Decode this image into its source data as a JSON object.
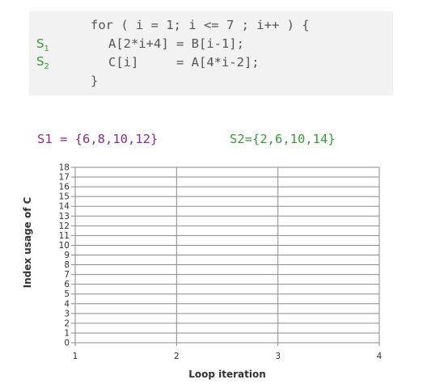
{
  "code": {
    "line1": "for ( i = 1; i <= 7 ; i++ ) {",
    "line2": "A[2*i+4] = B[i-1];",
    "line3": "C[i]     = A[4*i-2];",
    "line4": "}",
    "s1_label": "S",
    "s1_sub": "1",
    "s2_label": "S",
    "s2_sub": "2"
  },
  "sets": {
    "s1": "S1 = {6,8,10,12}",
    "s2": "S2={2,6,10,14}"
  },
  "chart_data": {
    "type": "scatter",
    "xlabel": "Loop iteration",
    "ylabel": "Index usage of C",
    "xlim": [
      1,
      4
    ],
    "ylim": [
      0,
      18
    ],
    "x_ticks": [
      "1",
      "2",
      "3",
      "4"
    ],
    "y_ticks": [
      "0",
      "1",
      "2",
      "3",
      "4",
      "5",
      "6",
      "7",
      "8",
      "9",
      "10",
      "11",
      "12",
      "13",
      "14",
      "15",
      "16",
      "17",
      "18"
    ],
    "grid": true,
    "series": []
  },
  "colors": {
    "s1": "#8a2a8a",
    "s2": "#3a9a3a",
    "code_bg": "#f2f2f2"
  }
}
